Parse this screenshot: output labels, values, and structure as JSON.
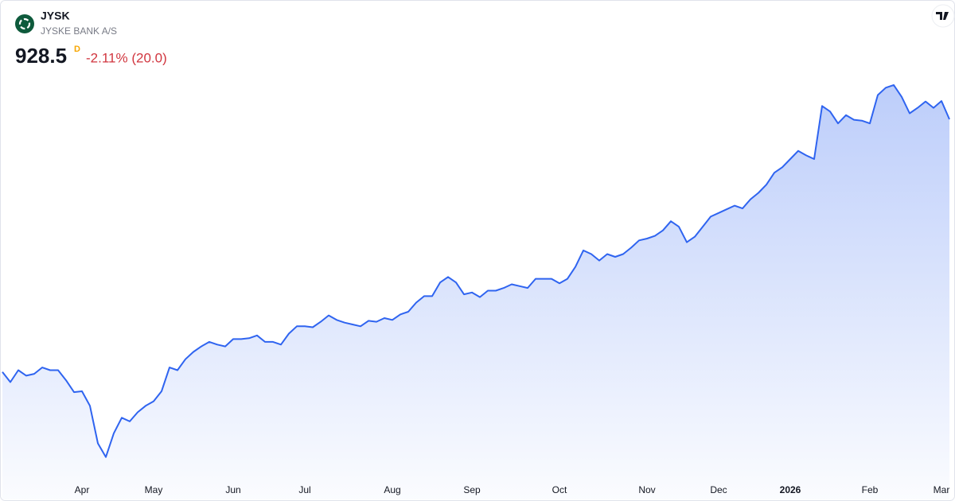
{
  "chart_data": {
    "type": "area",
    "symbol": "JYSK",
    "name": "JYSKE BANK A/S",
    "price": "928.5",
    "price_flag": "D",
    "change": "-2.11% (20.0)",
    "color": "#2f64f0",
    "ylim": [
      537,
      1059
    ],
    "categories": [
      null,
      null,
      null,
      null,
      null,
      null,
      null,
      null,
      null,
      null,
      "Apr",
      null,
      null,
      null,
      null,
      null,
      null,
      null,
      null,
      "May",
      null,
      null,
      null,
      null,
      null,
      null,
      null,
      null,
      null,
      "Jun",
      null,
      null,
      null,
      null,
      null,
      null,
      null,
      null,
      "Jul",
      null,
      null,
      null,
      null,
      null,
      null,
      null,
      null,
      null,
      null,
      "Aug",
      null,
      null,
      null,
      null,
      null,
      null,
      null,
      null,
      null,
      "Sep",
      null,
      null,
      null,
      null,
      null,
      null,
      null,
      null,
      null,
      null,
      "Oct",
      null,
      null,
      null,
      null,
      null,
      null,
      null,
      null,
      null,
      null,
      "Nov",
      null,
      null,
      null,
      null,
      null,
      null,
      null,
      null,
      "Dec",
      null,
      null,
      null,
      null,
      null,
      null,
      null,
      null,
      "2026",
      null,
      null,
      null,
      null,
      null,
      null,
      null,
      null,
      null,
      "Feb",
      null,
      null,
      null,
      null,
      null,
      null,
      null,
      null,
      "Mar",
      null
    ],
    "values": [
      652,
      641,
      654,
      648,
      650,
      657,
      654,
      654,
      643,
      630,
      631,
      615,
      574,
      559,
      585,
      602,
      598,
      608,
      615,
      620,
      631,
      657,
      654,
      666,
      674,
      680,
      685,
      682,
      680,
      688,
      688,
      689,
      692,
      685,
      685,
      682,
      694,
      702,
      702,
      701,
      707,
      714,
      709,
      706,
      704,
      702,
      708,
      707,
      711,
      709,
      715,
      718,
      728,
      735,
      735,
      750,
      756,
      750,
      737,
      739,
      734,
      741,
      741,
      744,
      748,
      746,
      744,
      754,
      754,
      754,
      749,
      754,
      767,
      785,
      781,
      774,
      781,
      778,
      781,
      788,
      796,
      798,
      801,
      807,
      817,
      811,
      794,
      800,
      811,
      822,
      826,
      830,
      834,
      831,
      841,
      848,
      857,
      870,
      876,
      885,
      894,
      889,
      885,
      943,
      937,
      924,
      933,
      928,
      927,
      924,
      955,
      963,
      966,
      953,
      935,
      941,
      948,
      941,
      948.5,
      928.5
    ]
  }
}
